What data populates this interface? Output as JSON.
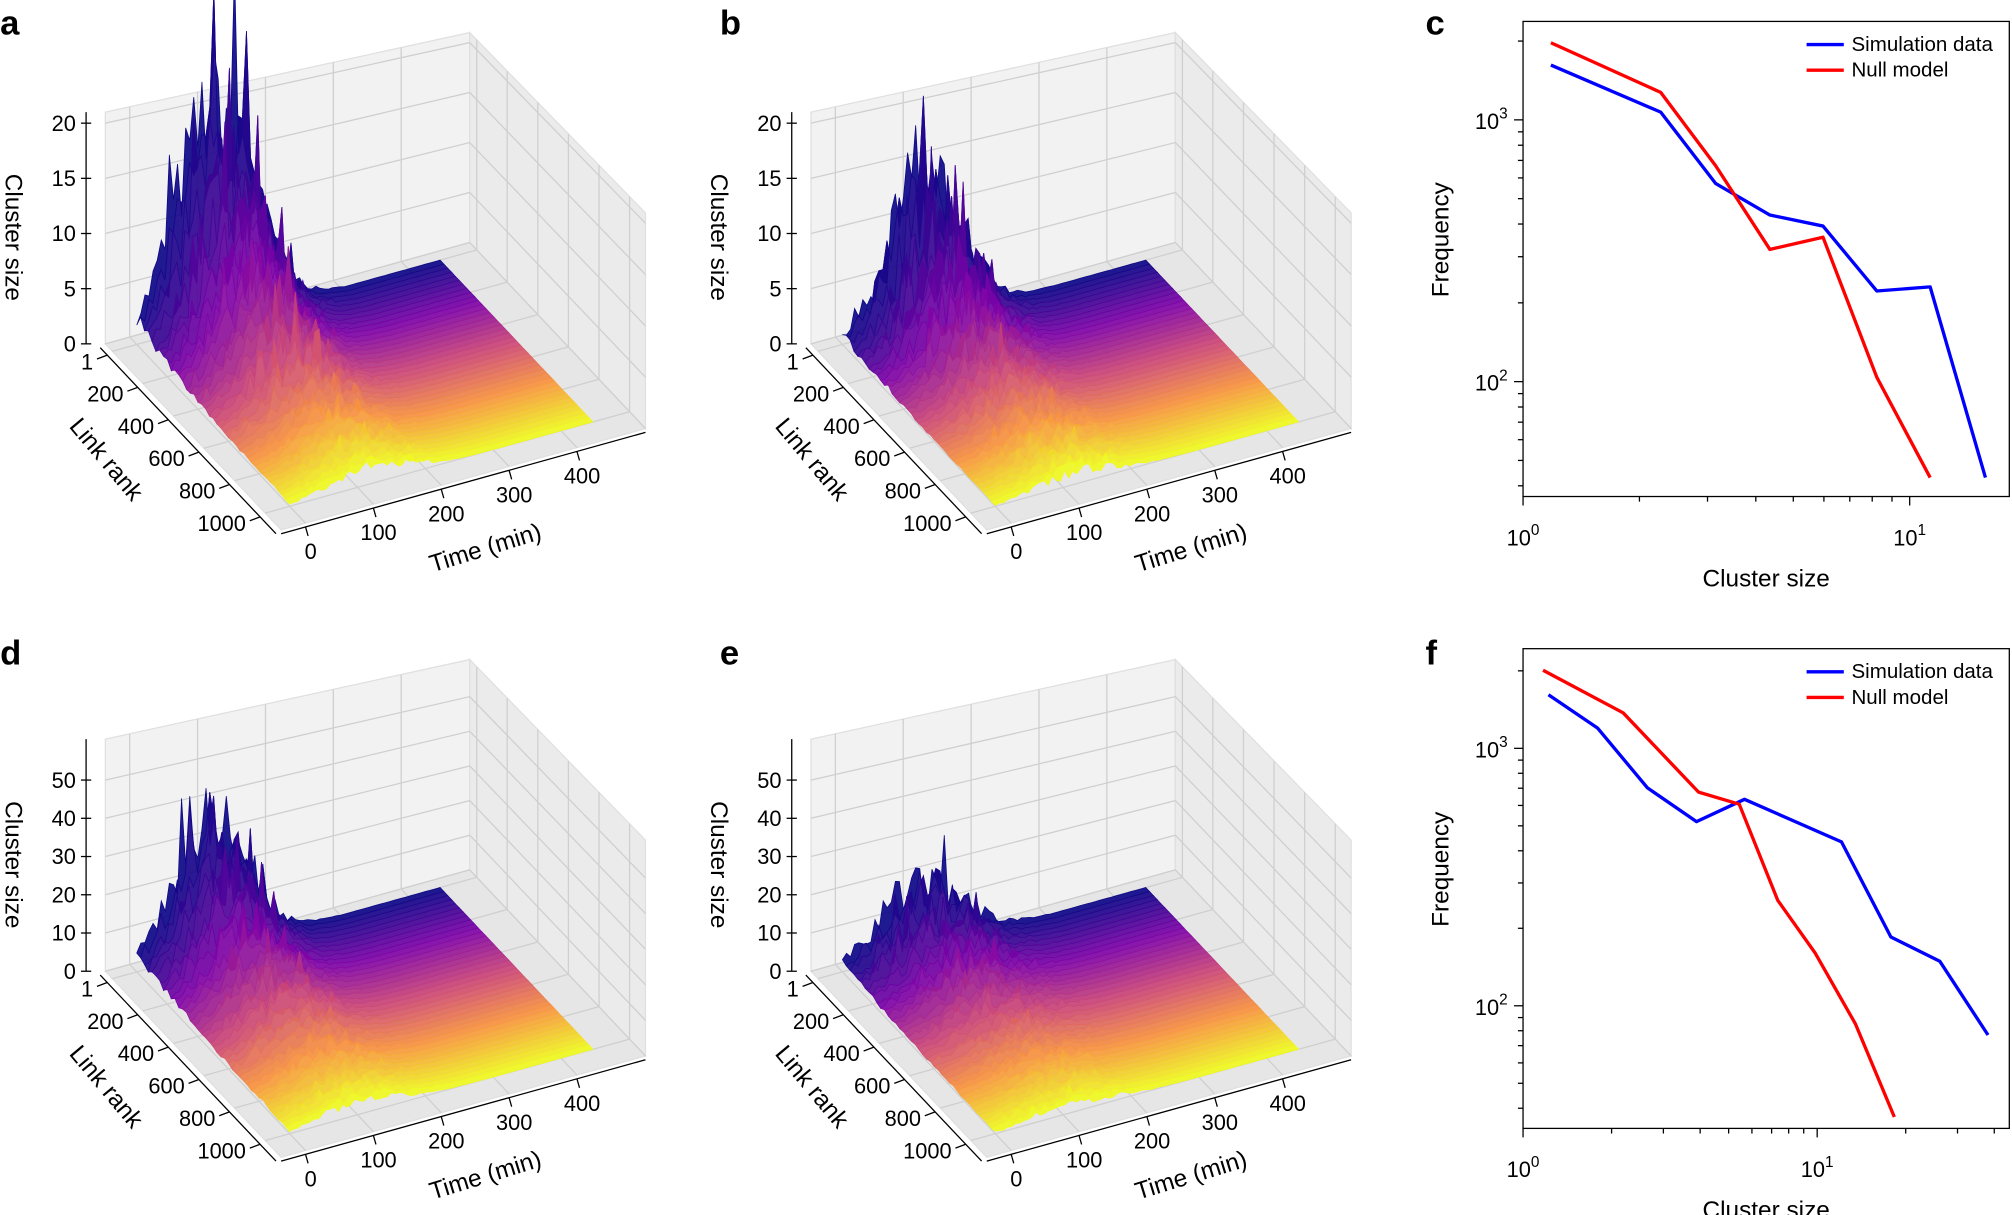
{
  "panel_labels": {
    "a": "a",
    "b": "b",
    "c": "c",
    "d": "d",
    "e": "e",
    "f": "f"
  },
  "chart_data": [
    {
      "panel": "a",
      "type": "surface",
      "colormap": "plasma",
      "xlabel": "Time (min)",
      "ylabel": "Link rank",
      "zlabel": "Cluster size",
      "xticks": [
        "0",
        "100",
        "200",
        "300",
        "400"
      ],
      "yticks": [
        "1",
        "200",
        "400",
        "600",
        "800",
        "1000"
      ],
      "zticks": [
        "0",
        "5",
        "10",
        "15",
        "20"
      ],
      "zlim": [
        0,
        21
      ]
    },
    {
      "panel": "b",
      "type": "surface",
      "colormap": "plasma",
      "xlabel": "Time (min)",
      "ylabel": "Link rank",
      "zlabel": "Cluster size",
      "xticks": [
        "0",
        "100",
        "200",
        "300",
        "400"
      ],
      "yticks": [
        "1",
        "200",
        "400",
        "600",
        "800",
        "1000"
      ],
      "zticks": [
        "0",
        "5",
        "10",
        "15",
        "20"
      ],
      "zlim": [
        0,
        21
      ]
    },
    {
      "panel": "c",
      "type": "line",
      "xscale": "log",
      "yscale": "log",
      "xlabel": "Cluster size",
      "ylabel": "Frequency",
      "xlim": [
        1,
        18.1
      ],
      "ylim": [
        36.4,
        2377
      ],
      "legend": "top-right",
      "xticks": [
        {
          "value": 1,
          "base": "10",
          "exp": "0"
        },
        {
          "value": 10,
          "base": "10",
          "exp": "1"
        }
      ],
      "yticks": [
        {
          "value": 100,
          "base": "10",
          "exp": "2"
        },
        {
          "value": 1000,
          "base": "10",
          "exp": "3"
        }
      ],
      "series": [
        {
          "name": "Simulation data",
          "color": "#0000ff",
          "x": [
            1.18,
            2.27,
            3.15,
            4.35,
            5.97,
            8.22,
            11.3,
            15.7
          ],
          "y": [
            1620,
            1070,
            571,
            433,
            393,
            222,
            230,
            43
          ]
        },
        {
          "name": "Null model",
          "color": "#ff0000",
          "x": [
            1.18,
            2.27,
            3.15,
            4.35,
            5.97,
            8.22,
            11.3
          ],
          "y": [
            1970,
            1273,
            667,
            320,
            356,
            104,
            43
          ]
        }
      ]
    },
    {
      "panel": "d",
      "type": "surface",
      "colormap": "plasma",
      "xlabel": "Time (min)",
      "ylabel": "Link rank",
      "zlabel": "Cluster size",
      "xticks": [
        "0",
        "100",
        "200",
        "300",
        "400"
      ],
      "yticks": [
        "1",
        "200",
        "400",
        "600",
        "800",
        "1000"
      ],
      "zticks": [
        "0",
        "10",
        "20",
        "30",
        "40",
        "50"
      ],
      "zlim": [
        0,
        60
      ]
    },
    {
      "panel": "e",
      "type": "surface",
      "colormap": "plasma",
      "xlabel": "Time (min)",
      "ylabel": "Link rank",
      "zlabel": "Cluster size",
      "xticks": [
        "0",
        "100",
        "200",
        "300",
        "400"
      ],
      "yticks": [
        "1",
        "200",
        "400",
        "600",
        "800",
        "1000"
      ],
      "zticks": [
        "0",
        "10",
        "20",
        "30",
        "40",
        "50"
      ],
      "zlim": [
        0,
        60
      ]
    },
    {
      "panel": "f",
      "type": "line",
      "xscale": "log",
      "yscale": "log",
      "xlabel": "Cluster size",
      "ylabel": "Frequency",
      "xlim": [
        1,
        45
      ],
      "ylim": [
        33.4,
        2438
      ],
      "legend": "top-right",
      "xticks": [
        {
          "value": 1,
          "base": "10",
          "exp": "0"
        },
        {
          "value": 10,
          "base": "10",
          "exp": "1"
        }
      ],
      "yticks": [
        {
          "value": 100,
          "base": "10",
          "exp": "2"
        },
        {
          "value": 1000,
          "base": "10",
          "exp": "3"
        }
      ],
      "series": [
        {
          "name": "Simulation data",
          "color": "#0000ff",
          "x": [
            1.22,
            1.79,
            2.65,
            3.89,
            5.66,
            12.1,
            17.8,
            26.1,
            38.1
          ],
          "y": [
            1614,
            1200,
            702,
            519,
            634,
            433,
            185,
            149,
            77
          ]
        },
        {
          "name": "Null model",
          "color": "#ff0000",
          "x": [
            1.17,
            2.19,
            3.95,
            5.43,
            7.34,
            9.86,
            13.5,
            18.3
          ],
          "y": [
            2010,
            1373,
            676,
            607,
            257,
            160,
            85,
            37
          ]
        }
      ]
    }
  ]
}
